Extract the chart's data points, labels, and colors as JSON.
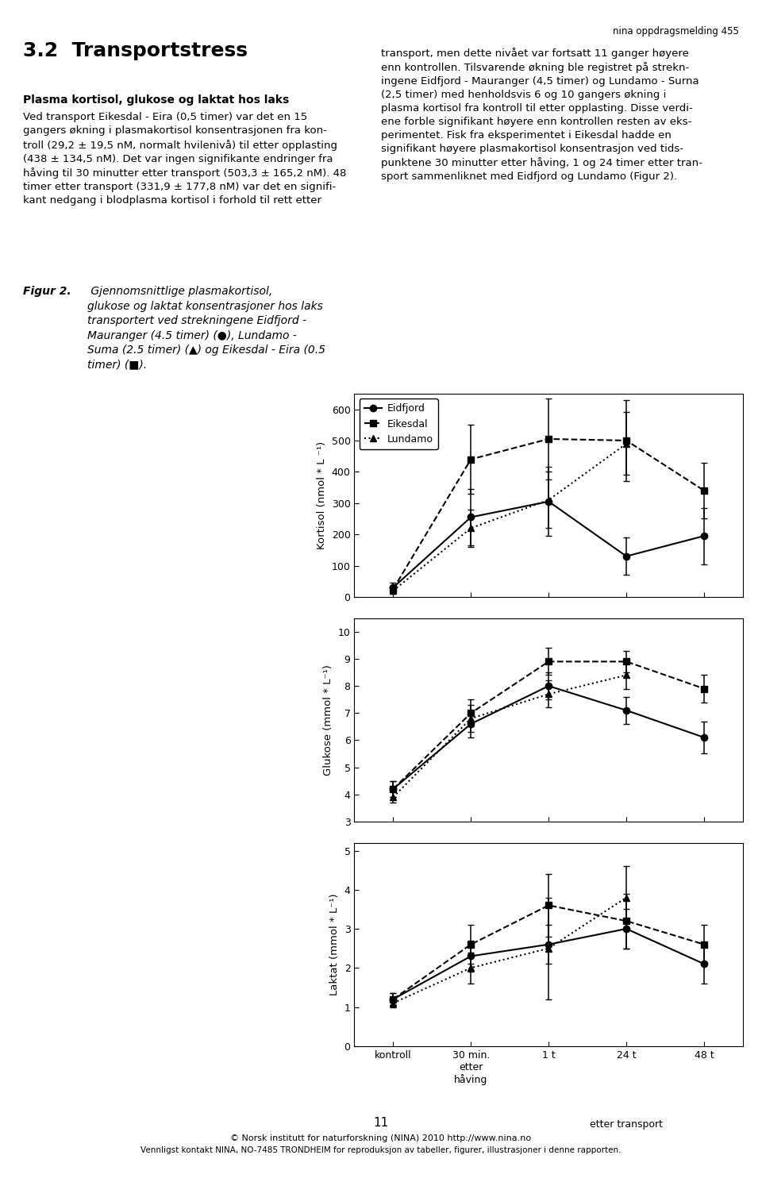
{
  "x_labels": [
    "kontroll",
    "30 min.\netter\nhåving",
    "1 t",
    "24 t",
    "48 t"
  ],
  "x_positions": [
    0,
    1,
    2,
    3,
    4
  ],
  "kortisol": {
    "eidfjord_y": [
      30,
      255,
      305,
      130,
      195
    ],
    "eidfjord_err": [
      15,
      90,
      110,
      60,
      90
    ],
    "eikesdal_y": [
      25,
      440,
      505,
      500,
      340
    ],
    "eikesdal_err": [
      10,
      110,
      130,
      130,
      90
    ],
    "lundamo_y": [
      20,
      220,
      310,
      490,
      null
    ],
    "lundamo_err": [
      10,
      60,
      90,
      100,
      null
    ],
    "ylim": [
      0,
      650
    ],
    "yticks": [
      0,
      100,
      200,
      300,
      400,
      500,
      600
    ],
    "ylabel": "Kortisol (nmol * L ⁻¹)"
  },
  "glukose": {
    "eidfjord_y": [
      4.2,
      6.6,
      8.0,
      7.1,
      6.1
    ],
    "eidfjord_err": [
      0.3,
      0.5,
      0.5,
      0.5,
      0.6
    ],
    "eikesdal_y": [
      4.2,
      7.0,
      8.9,
      8.9,
      7.9
    ],
    "eikesdal_err": [
      0.3,
      0.5,
      0.5,
      0.4,
      0.5
    ],
    "lundamo_y": [
      3.9,
      6.8,
      7.7,
      8.4,
      null
    ],
    "lundamo_err": [
      0.2,
      0.5,
      0.5,
      0.5,
      null
    ],
    "ylim": [
      3,
      10.5
    ],
    "yticks": [
      3,
      4,
      5,
      6,
      7,
      8,
      9,
      10
    ],
    "ylabel": "Glukose (mmol * L⁻¹)"
  },
  "laktat": {
    "eidfjord_y": [
      1.2,
      2.3,
      2.6,
      3.0,
      2.1
    ],
    "eidfjord_err": [
      0.15,
      0.4,
      0.5,
      0.5,
      0.5
    ],
    "eikesdal_y": [
      1.2,
      2.6,
      3.6,
      3.2,
      2.6
    ],
    "eikesdal_err": [
      0.15,
      0.5,
      0.8,
      0.7,
      0.5
    ],
    "lundamo_y": [
      1.1,
      2.0,
      2.5,
      3.8,
      null
    ],
    "lundamo_err": [
      0.1,
      0.4,
      1.3,
      0.8,
      null
    ],
    "ylim": [
      0,
      5.2
    ],
    "yticks": [
      0,
      1,
      2,
      3,
      4,
      5
    ],
    "ylabel": "Laktat (mmol * L⁻¹)"
  },
  "header_line": "nina oppdragsmelding 455",
  "section_title": "3.2  Transportstress",
  "subtitle": "Plasma kortisol, glukose og laktat hos laks",
  "body_left": "Ved transport Eikesdal - Eira (0,5 timer) var det en 15 gangers økning i plasmakortisol konsentrasjonen fra kontroll (29,2 ± 19,5 nM, normalt hvilenivå) til etter opplasting (438 ± 134,5 nM). Det var ingen signifikante endringer fra håving til 30 minutter etter transport (503,3 ± 165,2 nM). 48 timer etter transport (331,9 ± 177,8 nM) var det en signifikant nedgang i blodplasma kortisol i forhold til rett etter",
  "body_right": "transport, men dette nivået var fortsatt 11 ganger høyere enn kontrollen. Tilsvarende økning ble registret på strekningene Eidfjord - Mauranger (4,5 timer) og Lundamo - Surna (2,5 timer) med henholdsvis 6 og 10 gangers økning i plasma kortisol fra kontroll til etter opplasting. Disse verdiene forble signifikant høyere enn kontrollen resten av eksperimentet. Fisk fra eksperimentet i Eikesdal hadde en signifikant høyere plasmakortisol konsentrasjon ved tidspunktene 30 minutter etter håving, 1 og 24 timer etter transport sammenliknet med Eidfjord og Lundamo (Figur 2).",
  "figur_caption": "Figur 2. Gjennomsnittlige plasmakortisol, glukose og laktat konsentrasjoner hos laks transportert ved strekningene Eidfjord - Mauranger (4.5 timer) (●), Lundamo - Suma (2.5 timer) (▲) og Eikesdal - Eira (0.5 timer) (■).",
  "footer_page": "11",
  "footer_line1": "© Norsk institutt for naturforskning (NINA) 2010 http://www.nina.no",
  "footer_line2": "Vennligst kontakt NINA, NO-7485 TRONDHEIM for reproduksjon av tabeller, figurer, illustrasjoner i denne rapporten.",
  "background_color": "#ffffff",
  "linewidth": 1.5,
  "markersize": 6,
  "capsize": 3,
  "elinewidth": 1.1
}
